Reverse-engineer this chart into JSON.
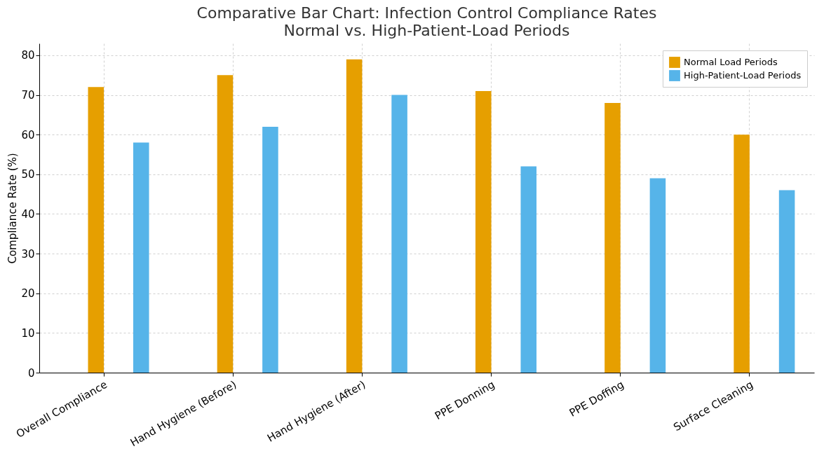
{
  "chart_data": {
    "type": "bar",
    "title": "Comparative Bar Chart: Infection Control Compliance Rates",
    "subtitle": "Normal vs. High-Patient-Load Periods",
    "ylabel": "Compliance Rate (%)",
    "categories": [
      "Overall Compliance",
      "Hand Hygiene (Before)",
      "Hand Hygiene (After)",
      "PPE Donning",
      "PPE Doffing",
      "Surface Cleaning"
    ],
    "series": [
      {
        "name": "Normal Load Periods",
        "color": "#e69f00",
        "values": [
          72,
          75,
          79,
          71,
          68,
          60
        ]
      },
      {
        "name": "High-Patient-Load Periods",
        "color": "#56b4e9",
        "values": [
          58,
          62,
          70,
          52,
          49,
          46
        ]
      }
    ],
    "ylim": [
      0,
      83
    ],
    "yticks": [
      0,
      10,
      20,
      30,
      40,
      50,
      60,
      70,
      80
    ],
    "grid": true,
    "legend": "top right"
  }
}
